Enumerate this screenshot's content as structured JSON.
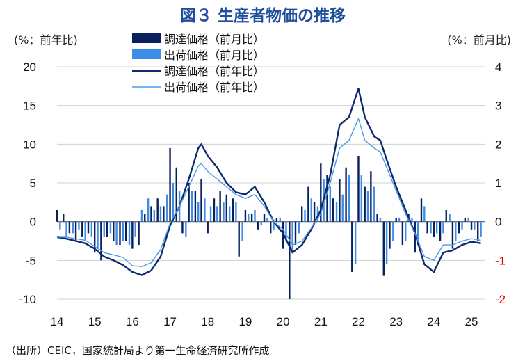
{
  "chart_data": {
    "type": "bar+line",
    "title": "図３ 生産者物価の推移",
    "y_left_label": "(%：前年比)",
    "y_right_label": "(%：前月比)",
    "y_left_ticks": [
      "20",
      "15",
      "10",
      "5",
      "0",
      "-5",
      "-10"
    ],
    "y_right_ticks": [
      "4",
      "3",
      "2",
      "1",
      "0",
      "-1",
      "-2"
    ],
    "x_ticks": [
      "14",
      "15",
      "16",
      "17",
      "18",
      "19",
      "20",
      "21",
      "22",
      "23",
      "24",
      "25"
    ],
    "ylim_left": [
      -10,
      20
    ],
    "ylim_right": [
      -2,
      4
    ],
    "legend_placement": "top-center",
    "colors": {
      "import_mom": "#0a1f5c",
      "export_mom": "#3b8ee8",
      "import_yoy": "#0d2a6e",
      "export_yoy": "#4a9ae8",
      "negative_right_tick": "#e00000",
      "title": "#1f4e9c"
    },
    "series": [
      {
        "name": "調達価格（前月比）",
        "axis": "right",
        "kind": "bar",
        "points": [
          [
            2014.0,
            0.3
          ],
          [
            2014.17,
            0.2
          ],
          [
            2014.33,
            -0.3
          ],
          [
            2014.5,
            -0.5
          ],
          [
            2014.67,
            -0.4
          ],
          [
            2014.83,
            -0.3
          ],
          [
            2015.0,
            -0.8
          ],
          [
            2015.17,
            -1.0
          ],
          [
            2015.33,
            -0.4
          ],
          [
            2015.5,
            -0.5
          ],
          [
            2015.67,
            -0.6
          ],
          [
            2015.83,
            -0.5
          ],
          [
            2016.0,
            -0.7
          ],
          [
            2016.17,
            -0.6
          ],
          [
            2016.33,
            0.2
          ],
          [
            2016.5,
            0.4
          ],
          [
            2016.67,
            0.6
          ],
          [
            2016.83,
            0.4
          ],
          [
            2017.0,
            1.9
          ],
          [
            2017.17,
            1.4
          ],
          [
            2017.33,
            -0.3
          ],
          [
            2017.5,
            1.0
          ],
          [
            2017.67,
            0.8
          ],
          [
            2017.83,
            1.1
          ],
          [
            2018.0,
            -0.3
          ],
          [
            2018.17,
            0.6
          ],
          [
            2018.33,
            0.8
          ],
          [
            2018.5,
            0.7
          ],
          [
            2018.67,
            0.6
          ],
          [
            2018.83,
            -0.9
          ],
          [
            2019.0,
            0.3
          ],
          [
            2019.17,
            0.2
          ],
          [
            2019.33,
            -0.2
          ],
          [
            2019.5,
            0.2
          ],
          [
            2019.67,
            -0.3
          ],
          [
            2019.83,
            0.1
          ],
          [
            2020.0,
            -0.7
          ],
          [
            2020.17,
            -2.0
          ],
          [
            2020.33,
            -0.6
          ],
          [
            2020.5,
            0.4
          ],
          [
            2020.67,
            0.9
          ],
          [
            2020.83,
            0.5
          ],
          [
            2021.0,
            1.5
          ],
          [
            2021.17,
            1.2
          ],
          [
            2021.33,
            0.6
          ],
          [
            2021.5,
            1.1
          ],
          [
            2021.67,
            1.4
          ],
          [
            2021.83,
            -1.3
          ],
          [
            2022.0,
            1.7
          ],
          [
            2022.17,
            0.9
          ],
          [
            2022.33,
            1.3
          ],
          [
            2022.5,
            0.2
          ],
          [
            2022.67,
            -1.4
          ],
          [
            2022.83,
            -0.7
          ],
          [
            2023.0,
            0.1
          ],
          [
            2023.17,
            -0.6
          ],
          [
            2023.33,
            0.2
          ],
          [
            2023.5,
            -0.8
          ],
          [
            2023.67,
            0.6
          ],
          [
            2023.83,
            -0.3
          ],
          [
            2024.0,
            -0.4
          ],
          [
            2024.17,
            -0.5
          ],
          [
            2024.33,
            0.3
          ],
          [
            2024.5,
            -0.7
          ],
          [
            2024.67,
            -0.3
          ],
          [
            2024.83,
            0.1
          ],
          [
            2025.0,
            -0.2
          ],
          [
            2025.17,
            -0.5
          ]
        ]
      },
      {
        "name": "出荷価格（前月比）",
        "axis": "right",
        "kind": "bar",
        "points": [
          [
            2014.08,
            -0.2
          ],
          [
            2014.25,
            -0.4
          ],
          [
            2014.42,
            -0.3
          ],
          [
            2014.58,
            -0.2
          ],
          [
            2014.75,
            -0.5
          ],
          [
            2014.92,
            -0.4
          ],
          [
            2015.08,
            -0.7
          ],
          [
            2015.25,
            -0.4
          ],
          [
            2015.42,
            -0.3
          ],
          [
            2015.58,
            -0.6
          ],
          [
            2015.75,
            -0.5
          ],
          [
            2015.92,
            -0.6
          ],
          [
            2016.08,
            -0.4
          ],
          [
            2016.25,
            0.3
          ],
          [
            2016.42,
            0.6
          ],
          [
            2016.58,
            0.3
          ],
          [
            2016.75,
            0.4
          ],
          [
            2016.92,
            0.7
          ],
          [
            2017.08,
            1.0
          ],
          [
            2017.25,
            0.8
          ],
          [
            2017.42,
            -0.4
          ],
          [
            2017.58,
            0.8
          ],
          [
            2017.75,
            0.5
          ],
          [
            2017.92,
            0.6
          ],
          [
            2018.08,
            0.4
          ],
          [
            2018.25,
            0.4
          ],
          [
            2018.42,
            0.5
          ],
          [
            2018.58,
            0.4
          ],
          [
            2018.75,
            0.5
          ],
          [
            2018.92,
            -0.5
          ],
          [
            2019.08,
            0.2
          ],
          [
            2019.25,
            0.3
          ],
          [
            2019.42,
            -0.1
          ],
          [
            2019.58,
            0.1
          ],
          [
            2019.75,
            -0.2
          ],
          [
            2019.92,
            0.1
          ],
          [
            2020.08,
            -0.5
          ],
          [
            2020.25,
            -0.8
          ],
          [
            2020.42,
            -0.3
          ],
          [
            2020.58,
            0.3
          ],
          [
            2020.75,
            0.6
          ],
          [
            2020.92,
            0.4
          ],
          [
            2021.08,
            1.1
          ],
          [
            2021.25,
            0.9
          ],
          [
            2021.42,
            0.5
          ],
          [
            2021.58,
            0.7
          ],
          [
            2021.75,
            1.2
          ],
          [
            2021.92,
            -1.1
          ],
          [
            2022.08,
            1.2
          ],
          [
            2022.25,
            0.8
          ],
          [
            2022.42,
            0.9
          ],
          [
            2022.58,
            0.1
          ],
          [
            2022.75,
            -1.1
          ],
          [
            2022.92,
            -0.5
          ],
          [
            2023.08,
            0.1
          ],
          [
            2023.25,
            -0.5
          ],
          [
            2023.42,
            0.1
          ],
          [
            2023.58,
            -0.6
          ],
          [
            2023.75,
            0.4
          ],
          [
            2023.92,
            -0.3
          ],
          [
            2024.08,
            -0.3
          ],
          [
            2024.25,
            -0.3
          ],
          [
            2024.42,
            0.2
          ],
          [
            2024.58,
            -0.5
          ],
          [
            2024.75,
            -0.2
          ],
          [
            2024.92,
            0.1
          ],
          [
            2025.08,
            -0.2
          ],
          [
            2025.25,
            -0.4
          ]
        ]
      },
      {
        "name": "調達価格（前年比）",
        "axis": "left",
        "kind": "line",
        "points": [
          [
            2014.0,
            -2.0
          ],
          [
            2014.25,
            -2.2
          ],
          [
            2014.5,
            -2.5
          ],
          [
            2014.75,
            -2.8
          ],
          [
            2015.0,
            -3.5
          ],
          [
            2015.25,
            -4.5
          ],
          [
            2015.5,
            -5.0
          ],
          [
            2015.75,
            -5.6
          ],
          [
            2016.0,
            -6.5
          ],
          [
            2016.25,
            -6.9
          ],
          [
            2016.5,
            -6.3
          ],
          [
            2016.75,
            -4.5
          ],
          [
            2017.0,
            -0.5
          ],
          [
            2017.25,
            2.0
          ],
          [
            2017.5,
            5.5
          ],
          [
            2017.75,
            9.5
          ],
          [
            2017.83,
            10.0
          ],
          [
            2018.0,
            8.5
          ],
          [
            2018.25,
            7.0
          ],
          [
            2018.5,
            5.0
          ],
          [
            2018.75,
            3.8
          ],
          [
            2019.0,
            3.5
          ],
          [
            2019.25,
            4.5
          ],
          [
            2019.5,
            2.5
          ],
          [
            2019.75,
            0.0
          ],
          [
            2020.0,
            -1.5
          ],
          [
            2020.25,
            -4.0
          ],
          [
            2020.5,
            -3.0
          ],
          [
            2020.75,
            -1.0
          ],
          [
            2021.0,
            1.5
          ],
          [
            2021.25,
            6.0
          ],
          [
            2021.5,
            12.5
          ],
          [
            2021.75,
            13.5
          ],
          [
            2022.0,
            17.2
          ],
          [
            2022.17,
            13.5
          ],
          [
            2022.42,
            11.0
          ],
          [
            2022.58,
            10.5
          ],
          [
            2022.75,
            8.0
          ],
          [
            2023.0,
            4.5
          ],
          [
            2023.25,
            1.5
          ],
          [
            2023.5,
            -1.5
          ],
          [
            2023.75,
            -5.5
          ],
          [
            2024.0,
            -6.5
          ],
          [
            2024.25,
            -4.0
          ],
          [
            2024.5,
            -3.7
          ],
          [
            2024.75,
            -3.0
          ],
          [
            2025.0,
            -2.6
          ],
          [
            2025.25,
            -2.8
          ]
        ]
      },
      {
        "name": "出荷価格（前年比）",
        "axis": "left",
        "kind": "line",
        "points": [
          [
            2014.0,
            -2.0
          ],
          [
            2014.25,
            -2.0
          ],
          [
            2014.5,
            -2.2
          ],
          [
            2014.75,
            -2.4
          ],
          [
            2015.0,
            -3.2
          ],
          [
            2015.25,
            -4.0
          ],
          [
            2015.5,
            -4.3
          ],
          [
            2015.75,
            -4.6
          ],
          [
            2016.0,
            -5.7
          ],
          [
            2016.25,
            -5.8
          ],
          [
            2016.5,
            -5.3
          ],
          [
            2016.75,
            -3.6
          ],
          [
            2017.0,
            -0.2
          ],
          [
            2017.25,
            2.0
          ],
          [
            2017.5,
            4.5
          ],
          [
            2017.75,
            7.2
          ],
          [
            2017.83,
            7.5
          ],
          [
            2018.0,
            6.5
          ],
          [
            2018.25,
            5.5
          ],
          [
            2018.5,
            4.5
          ],
          [
            2018.75,
            3.5
          ],
          [
            2019.0,
            3.0
          ],
          [
            2019.25,
            3.5
          ],
          [
            2019.5,
            2.0
          ],
          [
            2019.75,
            0.0
          ],
          [
            2020.0,
            -1.0
          ],
          [
            2020.25,
            -3.0
          ],
          [
            2020.5,
            -2.5
          ],
          [
            2020.75,
            -0.8
          ],
          [
            2021.0,
            1.0
          ],
          [
            2021.25,
            5.0
          ],
          [
            2021.5,
            9.5
          ],
          [
            2021.75,
            10.5
          ],
          [
            2022.0,
            13.3
          ],
          [
            2022.17,
            10.5
          ],
          [
            2022.42,
            9.5
          ],
          [
            2022.58,
            9.0
          ],
          [
            2022.75,
            7.0
          ],
          [
            2023.0,
            4.0
          ],
          [
            2023.25,
            1.0
          ],
          [
            2023.5,
            -1.5
          ],
          [
            2023.75,
            -4.5
          ],
          [
            2024.0,
            -5.0
          ],
          [
            2024.25,
            -3.0
          ],
          [
            2024.5,
            -3.0
          ],
          [
            2024.75,
            -2.5
          ],
          [
            2025.0,
            -2.2
          ],
          [
            2025.25,
            -2.4
          ]
        ]
      }
    ]
  },
  "source_note": "（出所）CEIC，国家統計局より第一生命経済研究所作成"
}
